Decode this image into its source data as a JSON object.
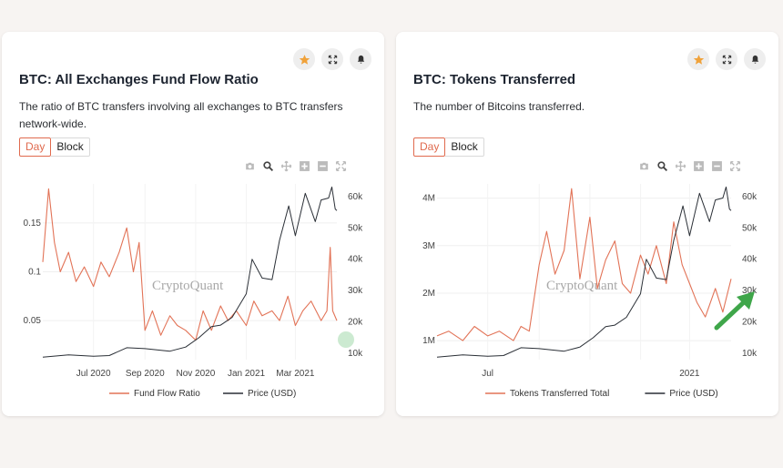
{
  "colors": {
    "flow": "#e27357",
    "price": "#2a2f36",
    "accent_star": "#f0a23a",
    "arrow": "#3fa64a"
  },
  "icons": {
    "card_actions": [
      "star-icon",
      "fullscreen-icon",
      "bell-icon"
    ],
    "modebar": [
      "camera-icon",
      "zoom-icon",
      "pan-icon",
      "zoom-in-icon",
      "zoom-out-icon",
      "autoscale-icon"
    ]
  },
  "cards": [
    {
      "title": "BTC: All Exchanges Fund Flow Ratio",
      "description": "The ratio of BTC transfers involving all exchanges to BTC transfers network-wide.",
      "toggle": {
        "day": "Day",
        "block": "Block",
        "selected": "Day"
      },
      "watermark": "CryptoQuant"
    },
    {
      "title": "BTC: Tokens Transferred",
      "description": "The number of Bitcoins transferred.",
      "toggle": {
        "day": "Day",
        "block": "Block",
        "selected": "Day"
      },
      "watermark": "CryptoQuant"
    }
  ],
  "chart_data": [
    {
      "type": "line",
      "x_range": [
        "2020-05-01",
        "2021-04-20"
      ],
      "x_ticks": [
        "Jul 2020",
        "Sep 2020",
        "Nov 2020",
        "Jan 2021",
        "Mar 2021"
      ],
      "y_left_ticks": [
        "0.05",
        "0.1",
        "0.15"
      ],
      "y_right_ticks": [
        "10k",
        "20k",
        "30k",
        "40k",
        "50k",
        "60k"
      ],
      "y_left_range": [
        0.01,
        0.19
      ],
      "y_right_range": [
        8000,
        64000
      ],
      "legend": [
        "Fund Flow Ratio",
        "Price (USD)"
      ],
      "series": [
        {
          "name": "Fund Flow Ratio",
          "axis": "left",
          "x": [
            "2020-05-01",
            "2020-05-08",
            "2020-05-15",
            "2020-05-22",
            "2020-06-01",
            "2020-06-10",
            "2020-06-20",
            "2020-07-01",
            "2020-07-10",
            "2020-07-20",
            "2020-08-01",
            "2020-08-10",
            "2020-08-18",
            "2020-08-25",
            "2020-09-01",
            "2020-09-10",
            "2020-09-20",
            "2020-10-01",
            "2020-10-10",
            "2020-10-20",
            "2020-11-01",
            "2020-11-10",
            "2020-11-20",
            "2020-12-01",
            "2020-12-10",
            "2020-12-20",
            "2021-01-01",
            "2021-01-10",
            "2021-01-20",
            "2021-02-01",
            "2021-02-10",
            "2021-02-20",
            "2021-03-01",
            "2021-03-10",
            "2021-03-20",
            "2021-04-01",
            "2021-04-08",
            "2021-04-12",
            "2021-04-15",
            "2021-04-20"
          ],
          "values": [
            0.11,
            0.185,
            0.13,
            0.1,
            0.12,
            0.09,
            0.105,
            0.085,
            0.11,
            0.095,
            0.12,
            0.145,
            0.1,
            0.13,
            0.04,
            0.06,
            0.035,
            0.055,
            0.045,
            0.04,
            0.03,
            0.06,
            0.04,
            0.065,
            0.05,
            0.06,
            0.045,
            0.07,
            0.055,
            0.06,
            0.05,
            0.075,
            0.045,
            0.06,
            0.07,
            0.05,
            0.06,
            0.125,
            0.06,
            0.05
          ]
        },
        {
          "name": "Price (USD)",
          "axis": "right",
          "x": [
            "2020-05-01",
            "2020-06-01",
            "2020-07-01",
            "2020-07-20",
            "2020-08-10",
            "2020-09-01",
            "2020-10-01",
            "2020-10-20",
            "2020-11-05",
            "2020-11-20",
            "2020-12-01",
            "2020-12-15",
            "2021-01-01",
            "2021-01-08",
            "2021-01-20",
            "2021-02-01",
            "2021-02-10",
            "2021-02-21",
            "2021-03-01",
            "2021-03-13",
            "2021-03-25",
            "2021-04-01",
            "2021-04-10",
            "2021-04-14",
            "2021-04-18",
            "2021-04-20"
          ],
          "values": [
            8800,
            9500,
            9100,
            9300,
            11800,
            11500,
            10700,
            12000,
            15000,
            18500,
            19000,
            21500,
            29000,
            40000,
            34000,
            33500,
            46000,
            57000,
            47500,
            61000,
            52000,
            58900,
            59500,
            63000,
            56000,
            55500
          ]
        }
      ]
    },
    {
      "type": "line",
      "x_range": [
        "2020-05-01",
        "2021-04-20"
      ],
      "x_ticks": [
        "Jul",
        "",
        "",
        "",
        "2021"
      ],
      "y_left_ticks": [
        "1M",
        "2M",
        "3M",
        "4M"
      ],
      "y_right_ticks": [
        "10k",
        "20k",
        "30k",
        "40k",
        "50k",
        "60k"
      ],
      "y_left_range": [
        600000,
        4300000
      ],
      "y_right_range": [
        8000,
        64000
      ],
      "legend": [
        "Tokens Transferred Total",
        "Price (USD)"
      ],
      "series": [
        {
          "name": "Tokens Transferred Total",
          "axis": "left",
          "x": [
            "2020-05-01",
            "2020-05-15",
            "2020-06-01",
            "2020-06-15",
            "2020-07-01",
            "2020-07-15",
            "2020-08-01",
            "2020-08-10",
            "2020-08-20",
            "2020-09-01",
            "2020-09-10",
            "2020-09-20",
            "2020-10-01",
            "2020-10-10",
            "2020-10-20",
            "2020-11-01",
            "2020-11-10",
            "2020-11-20",
            "2020-12-01",
            "2020-12-10",
            "2020-12-20",
            "2021-01-01",
            "2021-01-10",
            "2021-01-20",
            "2021-02-01",
            "2021-02-10",
            "2021-02-20",
            "2021-03-01",
            "2021-03-10",
            "2021-03-20",
            "2021-04-01",
            "2021-04-10",
            "2021-04-20"
          ],
          "values": [
            1100000,
            1200000,
            1000000,
            1300000,
            1100000,
            1200000,
            1000000,
            1300000,
            1200000,
            2600000,
            3300000,
            2400000,
            2900000,
            4200000,
            2300000,
            3600000,
            2100000,
            2700000,
            3100000,
            2200000,
            2000000,
            2800000,
            2400000,
            3000000,
            2200000,
            3500000,
            2600000,
            2200000,
            1800000,
            1500000,
            2100000,
            1600000,
            2300000
          ]
        },
        {
          "name": "Price (USD)",
          "axis": "right",
          "x": [
            "2020-05-01",
            "2020-06-01",
            "2020-07-01",
            "2020-07-20",
            "2020-08-10",
            "2020-09-01",
            "2020-10-01",
            "2020-10-20",
            "2020-11-05",
            "2020-11-20",
            "2020-12-01",
            "2020-12-15",
            "2021-01-01",
            "2021-01-08",
            "2021-01-20",
            "2021-02-01",
            "2021-02-10",
            "2021-02-21",
            "2021-03-01",
            "2021-03-13",
            "2021-03-25",
            "2021-04-01",
            "2021-04-10",
            "2021-04-14",
            "2021-04-18",
            "2021-04-20"
          ],
          "values": [
            8800,
            9500,
            9100,
            9300,
            11800,
            11500,
            10700,
            12000,
            15000,
            18500,
            19000,
            21500,
            29000,
            40000,
            34000,
            33500,
            46000,
            57000,
            47500,
            61000,
            52000,
            58900,
            59500,
            63000,
            56000,
            55500
          ]
        }
      ]
    }
  ]
}
